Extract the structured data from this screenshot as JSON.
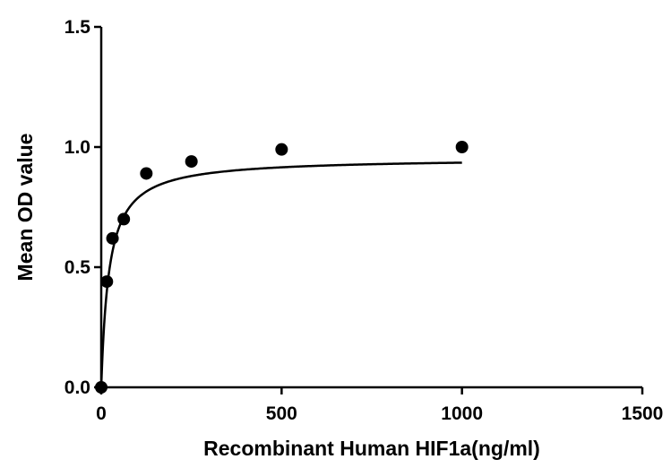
{
  "chart_data": {
    "type": "scatter",
    "title": "",
    "xlabel": "Recombinant Human HIF1a(ng/ml)",
    "ylabel": "Mean OD value",
    "xlim": [
      0,
      1500
    ],
    "ylim": [
      0,
      1.5
    ],
    "xticks": [
      0,
      500,
      1000,
      1500
    ],
    "xtick_labels": [
      "0",
      "500",
      "1000",
      "1500"
    ],
    "yticks": [
      0.0,
      0.5,
      1.0,
      1.5
    ],
    "ytick_labels": [
      "0.0",
      "0.5",
      "1.0",
      "1.5"
    ],
    "grid": false,
    "legend": "none",
    "points": {
      "x": [
        0,
        15.6,
        31.2,
        62.5,
        125,
        250,
        500,
        1000
      ],
      "y": [
        0.0,
        0.44,
        0.62,
        0.7,
        0.89,
        0.94,
        0.99,
        1.0
      ]
    },
    "fit_curve": {
      "model": "one-site saturation",
      "x_range": [
        0,
        1000
      ],
      "ymax": 0.955,
      "k": 21.5
    },
    "colors": {
      "marker": "#000000",
      "line": "#000000",
      "axis": "#000000"
    }
  }
}
